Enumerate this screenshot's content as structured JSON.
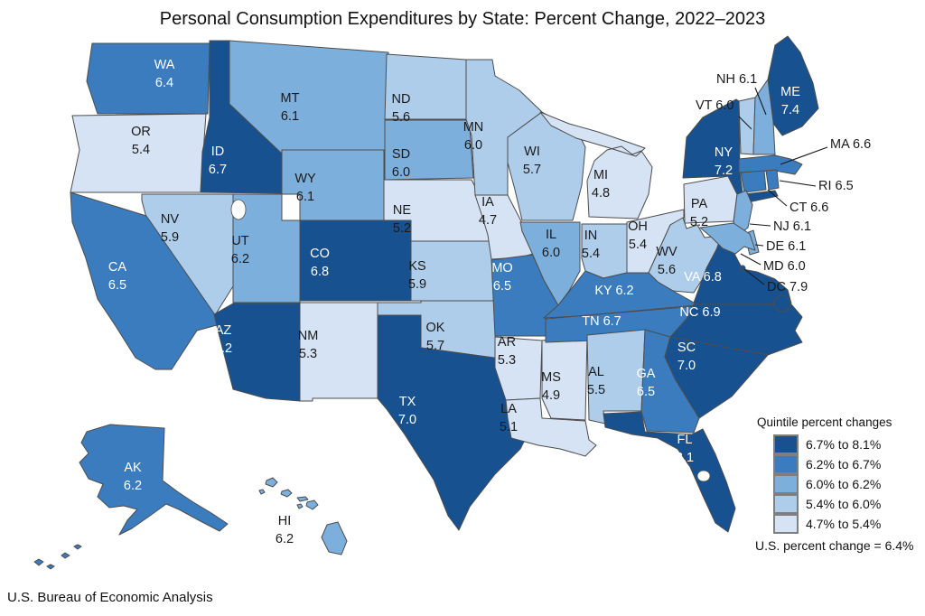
{
  "title": "Personal Consumption Expenditures by State: Percent Change, 2022–2023",
  "source": "U.S. Bureau of Economic Analysis",
  "legend": {
    "title": "Quintile percent changes",
    "items": [
      {
        "label": "6.7% to 8.1%",
        "color": "#17518f"
      },
      {
        "label": "6.2% to 6.7%",
        "color": "#3a7cbe"
      },
      {
        "label": "6.0% to 6.2%",
        "color": "#7dafdc"
      },
      {
        "label": "5.4% to 6.0%",
        "color": "#aecdea"
      },
      {
        "label": "4.7% to 5.4%",
        "color": "#d6e3f4"
      }
    ],
    "footnote": "U.S. percent change = 6.4%"
  },
  "chart_data": {
    "type": "heatmap",
    "subtype": "us-state-choropleth",
    "title": "Personal Consumption Expenditures by State: Percent Change, 2022–2023",
    "unit": "percent change",
    "us_percent_change": 6.4,
    "bins": [
      {
        "range": "6.7% to 8.1%",
        "quintile": 1
      },
      {
        "range": "6.2% to 6.7%",
        "quintile": 2
      },
      {
        "range": "6.0% to 6.2%",
        "quintile": 3
      },
      {
        "range": "5.4% to 6.0%",
        "quintile": 4
      },
      {
        "range": "4.7% to 5.4%",
        "quintile": 5
      }
    ],
    "states": [
      {
        "abbr": "WA",
        "value": 6.4,
        "quintile": 2
      },
      {
        "abbr": "OR",
        "value": 5.4,
        "quintile": 5
      },
      {
        "abbr": "ID",
        "value": 6.7,
        "quintile": 1
      },
      {
        "abbr": "MT",
        "value": 6.1,
        "quintile": 3
      },
      {
        "abbr": "WY",
        "value": 6.1,
        "quintile": 3
      },
      {
        "abbr": "NV",
        "value": 5.9,
        "quintile": 4
      },
      {
        "abbr": "UT",
        "value": 6.2,
        "quintile": 3
      },
      {
        "abbr": "CA",
        "value": 6.5,
        "quintile": 2
      },
      {
        "abbr": "AZ",
        "value": 7.2,
        "quintile": 1
      },
      {
        "abbr": "NM",
        "value": 5.3,
        "quintile": 5
      },
      {
        "abbr": "CO",
        "value": 6.8,
        "quintile": 1
      },
      {
        "abbr": "ND",
        "value": 5.6,
        "quintile": 4
      },
      {
        "abbr": "SD",
        "value": 6.0,
        "quintile": 3
      },
      {
        "abbr": "NE",
        "value": 5.2,
        "quintile": 5
      },
      {
        "abbr": "KS",
        "value": 5.9,
        "quintile": 4
      },
      {
        "abbr": "OK",
        "value": 5.7,
        "quintile": 4
      },
      {
        "abbr": "TX",
        "value": 7.0,
        "quintile": 1
      },
      {
        "abbr": "MN",
        "value": 6.0,
        "quintile": 4
      },
      {
        "abbr": "IA",
        "value": 4.7,
        "quintile": 5
      },
      {
        "abbr": "MO",
        "value": 6.5,
        "quintile": 2
      },
      {
        "abbr": "AR",
        "value": 5.3,
        "quintile": 5
      },
      {
        "abbr": "LA",
        "value": 5.1,
        "quintile": 5
      },
      {
        "abbr": "WI",
        "value": 5.7,
        "quintile": 4
      },
      {
        "abbr": "IL",
        "value": 6.0,
        "quintile": 3
      },
      {
        "abbr": "MS",
        "value": 4.9,
        "quintile": 5
      },
      {
        "abbr": "MI",
        "value": 4.8,
        "quintile": 5
      },
      {
        "abbr": "IN",
        "value": 5.4,
        "quintile": 4
      },
      {
        "abbr": "OH",
        "value": 5.4,
        "quintile": 5
      },
      {
        "abbr": "WV",
        "value": 5.6,
        "quintile": 4
      },
      {
        "abbr": "KY",
        "value": 6.2,
        "quintile": 2
      },
      {
        "abbr": "TN",
        "value": 6.7,
        "quintile": 2
      },
      {
        "abbr": "AL",
        "value": 5.5,
        "quintile": 4
      },
      {
        "abbr": "GA",
        "value": 6.5,
        "quintile": 2
      },
      {
        "abbr": "VA",
        "value": 6.8,
        "quintile": 1
      },
      {
        "abbr": "NC",
        "value": 6.9,
        "quintile": 1
      },
      {
        "abbr": "SC",
        "value": 7.0,
        "quintile": 1
      },
      {
        "abbr": "FL",
        "value": 8.1,
        "quintile": 1
      },
      {
        "abbr": "PA",
        "value": 5.2,
        "quintile": 5
      },
      {
        "abbr": "NY",
        "value": 7.2,
        "quintile": 1
      },
      {
        "abbr": "ME",
        "value": 7.4,
        "quintile": 1
      },
      {
        "abbr": "VT",
        "value": 6.0,
        "quintile": 4
      },
      {
        "abbr": "NH",
        "value": 6.1,
        "quintile": 3
      },
      {
        "abbr": "MA",
        "value": 6.6,
        "quintile": 2
      },
      {
        "abbr": "RI",
        "value": 6.5,
        "quintile": 2
      },
      {
        "abbr": "CT",
        "value": 6.6,
        "quintile": 2
      },
      {
        "abbr": "NJ",
        "value": 6.1,
        "quintile": 3
      },
      {
        "abbr": "DE",
        "value": 6.1,
        "quintile": 3
      },
      {
        "abbr": "MD",
        "value": 6.0,
        "quintile": 3
      },
      {
        "abbr": "DC",
        "value": 7.9,
        "quintile": 1
      },
      {
        "abbr": "AK",
        "value": 6.2,
        "quintile": 2
      },
      {
        "abbr": "HI",
        "value": 6.2,
        "quintile": 3
      }
    ]
  }
}
